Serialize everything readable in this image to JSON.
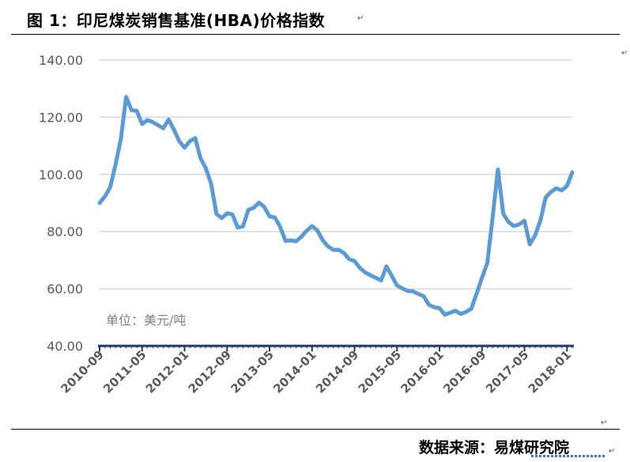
{
  "header": {
    "title": "图 1：印尼煤炭销售基准(HBA)价格指数"
  },
  "footer": {
    "source": "数据来源：易煤研究院"
  },
  "colors": {
    "line": "#5b9bd5",
    "axis": "#1f3864",
    "grid": "#d9d9d9",
    "text": "#595959"
  },
  "chart_data": {
    "type": "line",
    "title": "",
    "xlabel": "",
    "ylabel": "",
    "unit_note": "单位：美元/吨",
    "ylim": [
      40,
      140
    ],
    "y_ticks": [
      "140.00",
      "120.00",
      "100.00",
      "80.00",
      "60.00",
      "40.00"
    ],
    "x_ticks": [
      "2010-09",
      "2011-05",
      "2012-01",
      "2012-09",
      "2013-05",
      "2014-01",
      "2014-09",
      "2015-05",
      "2016-01",
      "2016-09",
      "2017-05",
      "2018-01"
    ],
    "grid": true,
    "legend": "none",
    "series": [
      {
        "x": [
          "2010-09",
          "2010-10",
          "2010-11",
          "2010-12",
          "2011-01",
          "2011-02",
          "2011-03",
          "2011-04",
          "2011-05",
          "2011-06",
          "2011-07",
          "2011-08",
          "2011-09",
          "2011-10",
          "2011-11",
          "2011-12",
          "2012-01",
          "2012-02",
          "2012-03",
          "2012-04",
          "2012-05",
          "2012-06",
          "2012-07",
          "2012-08",
          "2012-09",
          "2012-10",
          "2012-11",
          "2012-12",
          "2013-01",
          "2013-02",
          "2013-03",
          "2013-04",
          "2013-05",
          "2013-06",
          "2013-07",
          "2013-08",
          "2013-09",
          "2013-10",
          "2013-11",
          "2013-12",
          "2014-01",
          "2014-02",
          "2014-03",
          "2014-04",
          "2014-05",
          "2014-06",
          "2014-07",
          "2014-08",
          "2014-09",
          "2014-10",
          "2014-11",
          "2014-12",
          "2015-01",
          "2015-02",
          "2015-03",
          "2015-04",
          "2015-05",
          "2015-06",
          "2015-07",
          "2015-08",
          "2015-09",
          "2015-10",
          "2015-11",
          "2015-12",
          "2016-01",
          "2016-02",
          "2016-03",
          "2016-04",
          "2016-05",
          "2016-06",
          "2016-07",
          "2016-08",
          "2016-09",
          "2016-10",
          "2016-11",
          "2016-12",
          "2017-01",
          "2017-02",
          "2017-03",
          "2017-04",
          "2017-05",
          "2017-06",
          "2017-07",
          "2017-08",
          "2017-09",
          "2017-10",
          "2017-11",
          "2017-12",
          "2018-01",
          "2018-02"
        ],
        "values": [
          90.0,
          92.3,
          95.5,
          103.4,
          112.4,
          127.1,
          122.5,
          122.2,
          117.6,
          119.0,
          118.3,
          117.2,
          116.1,
          119.2,
          115.6,
          111.6,
          109.3,
          111.6,
          112.7,
          105.6,
          102.1,
          96.7,
          86.2,
          84.7,
          86.4,
          86.0,
          81.4,
          81.8,
          87.6,
          88.3,
          90.1,
          88.6,
          85.3,
          84.9,
          81.7,
          76.7,
          76.9,
          76.6,
          78.2,
          80.3,
          81.9,
          80.4,
          77.0,
          74.8,
          73.6,
          73.6,
          72.5,
          70.3,
          69.7,
          67.3,
          65.7,
          64.7,
          63.8,
          62.9,
          67.8,
          64.5,
          61.1,
          60.1,
          59.2,
          59.1,
          58.2,
          57.4,
          54.4,
          53.5,
          53.2,
          50.9,
          51.6,
          52.3,
          51.2,
          51.9,
          53.0,
          58.4,
          63.9,
          69.0,
          84.9,
          101.7,
          86.2,
          83.3,
          81.9,
          82.5,
          83.8,
          75.5,
          78.7,
          83.9,
          92.0,
          93.9,
          95.1,
          94.4,
          96.0,
          100.7
        ]
      }
    ]
  }
}
